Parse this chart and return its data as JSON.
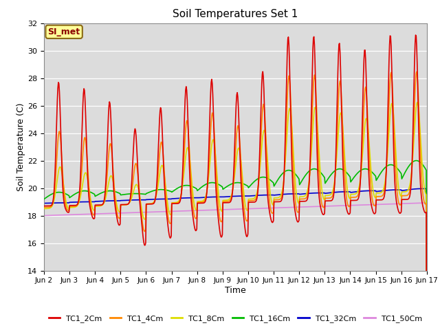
{
  "title": "Soil Temperatures Set 1",
  "xlabel": "Time",
  "ylabel": "Soil Temperature (C)",
  "ylim": [
    14,
    32
  ],
  "yticks": [
    14,
    16,
    18,
    20,
    22,
    24,
    26,
    28,
    30,
    32
  ],
  "bg_color": "#dcdcdc",
  "annotation_text": "SI_met",
  "annotation_bg": "#ffff99",
  "annotation_border": "#8b6914",
  "annotation_text_color": "#8b0000",
  "series": {
    "TC1_2Cm": {
      "color": "#dd0000",
      "lw": 1.2
    },
    "TC1_4Cm": {
      "color": "#ff8800",
      "lw": 1.2
    },
    "TC1_8Cm": {
      "color": "#dddd00",
      "lw": 1.2
    },
    "TC1_16Cm": {
      "color": "#00bb00",
      "lw": 1.2
    },
    "TC1_32Cm": {
      "color": "#0000cc",
      "lw": 1.2
    },
    "TC1_50Cm": {
      "color": "#dd88dd",
      "lw": 1.2
    }
  },
  "n_days": 15,
  "pts_per_day": 48,
  "x_tick_labels": [
    "Jun 2",
    "Jun 3",
    "Jun 4",
    "Jun 5",
    "Jun 6",
    "Jun 7",
    "Jun 8",
    "Jun 9",
    "Jun 10",
    "Jun 11",
    "Jun 12",
    "Jun 13",
    "Jun 14",
    "Jun 15",
    "Jun 16",
    "Jun 17"
  ]
}
